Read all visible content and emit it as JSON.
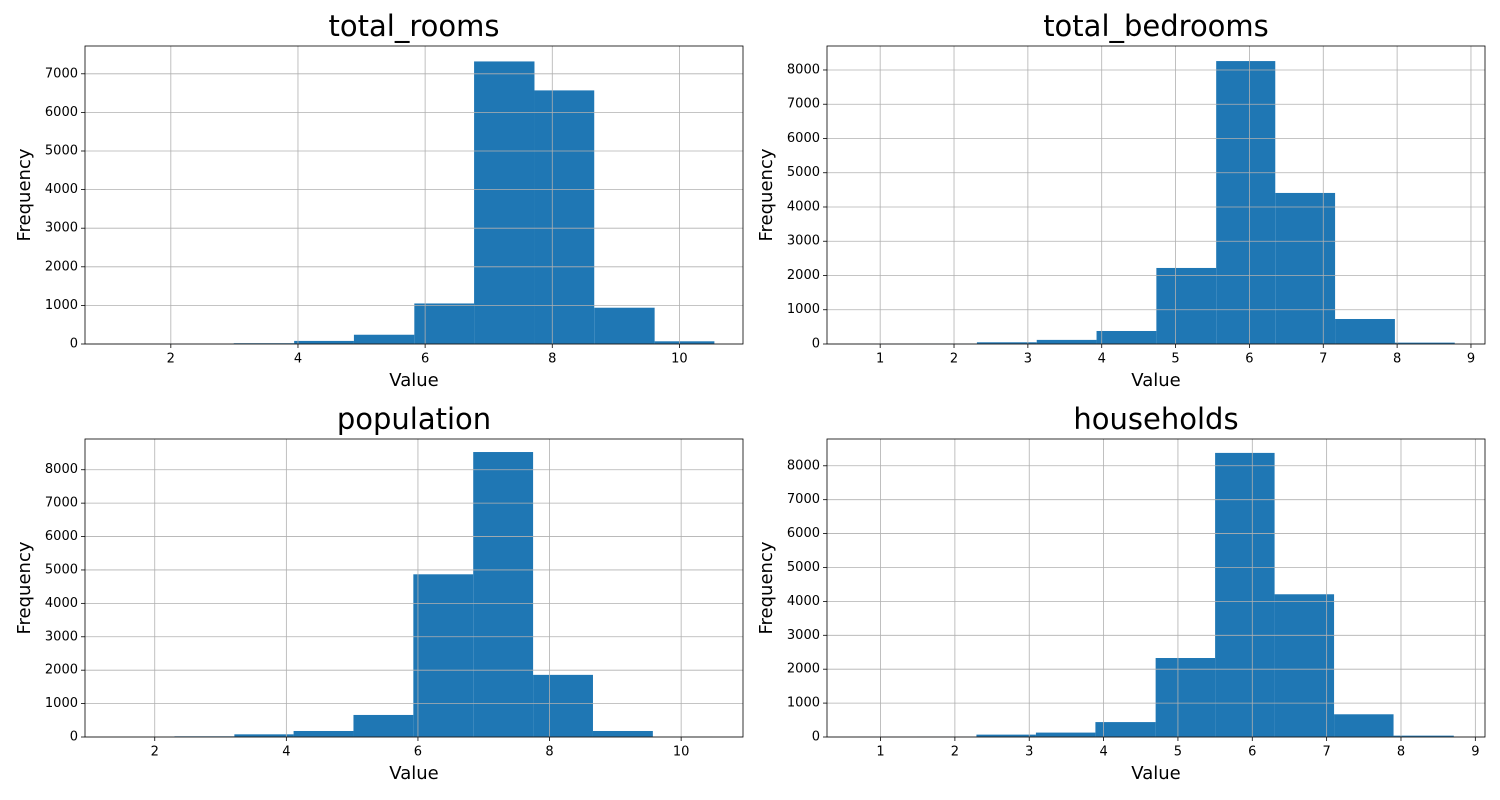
{
  "chart_data": [
    {
      "type": "histogram",
      "title": "total_rooms",
      "xlabel": "Value",
      "ylabel": "Frequency",
      "color": "#1f77b4",
      "grid": true,
      "bins": [
        1.1,
        2.05,
        2.99,
        3.94,
        4.88,
        5.83,
        6.77,
        7.72,
        8.66,
        9.61,
        10.55
      ],
      "values": [
        2,
        3,
        20,
        80,
        240,
        1050,
        7320,
        6570,
        940,
        70
      ],
      "xlim": [
        0.65,
        11.0
      ],
      "ylim": [
        0,
        7720
      ],
      "xticks": [
        2,
        4,
        6,
        8,
        10
      ],
      "yticks": [
        0,
        1000,
        2000,
        3000,
        4000,
        5000,
        6000,
        7000
      ]
    },
    {
      "type": "histogram",
      "title": "total_bedrooms",
      "xlabel": "Value",
      "ylabel": "Frequency",
      "color": "#1f77b4",
      "grid": true,
      "bins": [
        0.69,
        1.5,
        2.31,
        3.12,
        3.93,
        4.74,
        5.55,
        6.35,
        7.16,
        7.97,
        8.78
      ],
      "values": [
        3,
        10,
        50,
        120,
        380,
        2220,
        8260,
        4410,
        730,
        40
      ],
      "xlim": [
        0.28,
        9.19
      ],
      "ylim": [
        0,
        8700
      ],
      "xticks": [
        1,
        2,
        3,
        4,
        5,
        6,
        7,
        8,
        9
      ],
      "yticks": [
        0,
        1000,
        2000,
        3000,
        4000,
        5000,
        6000,
        7000,
        8000
      ]
    },
    {
      "type": "histogram",
      "title": "population",
      "xlabel": "Value",
      "ylabel": "Frequency",
      "color": "#1f77b4",
      "grid": true,
      "bins": [
        1.39,
        2.3,
        3.21,
        4.11,
        5.02,
        5.93,
        6.84,
        7.75,
        8.66,
        9.57,
        10.48
      ],
      "values": [
        2,
        20,
        80,
        180,
        660,
        4870,
        8530,
        1860,
        180,
        5
      ],
      "xlim": [
        0.94,
        10.94
      ],
      "ylim": [
        0,
        8920
      ],
      "xticks": [
        2,
        4,
        6,
        8,
        10
      ],
      "yticks": [
        0,
        1000,
        2000,
        3000,
        4000,
        5000,
        6000,
        7000,
        8000
      ]
    },
    {
      "type": "histogram",
      "title": "households",
      "xlabel": "Value",
      "ylabel": "Frequency",
      "color": "#1f77b4",
      "grid": true,
      "bins": [
        0.69,
        1.49,
        2.29,
        3.09,
        3.89,
        4.7,
        5.5,
        6.3,
        7.1,
        7.9,
        8.71
      ],
      "values": [
        3,
        10,
        70,
        130,
        440,
        2330,
        8380,
        4210,
        670,
        40
      ],
      "xlim": [
        0.28,
        9.13
      ],
      "ylim": [
        0,
        8790
      ],
      "xticks": [
        1,
        2,
        3,
        4,
        5,
        6,
        7,
        8,
        9
      ],
      "yticks": [
        0,
        1000,
        2000,
        3000,
        4000,
        5000,
        6000,
        7000,
        8000
      ]
    }
  ]
}
